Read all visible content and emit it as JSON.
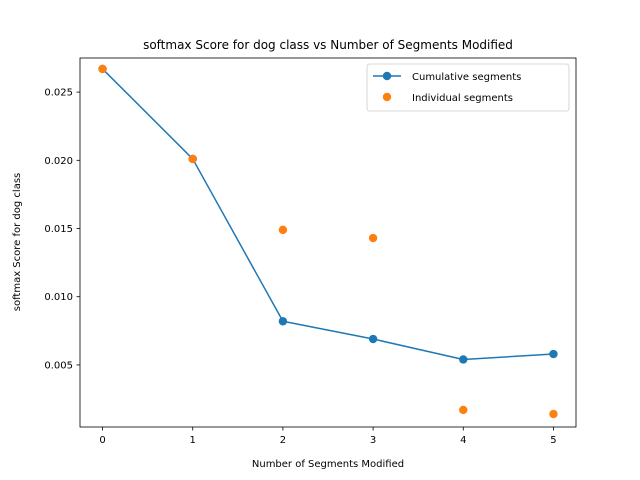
{
  "chart_data": {
    "type": "line",
    "title": "softmax Score for dog class vs Number of Segments Modified",
    "xlabel": "Number of Segments Modified",
    "ylabel": "softmax Score for dog class",
    "xlim": [
      -0.25,
      5.25
    ],
    "ylim": [
      0.00045,
      0.0275
    ],
    "x_ticks": [
      0,
      1,
      2,
      3,
      4,
      5
    ],
    "x_tick_labels": [
      "0",
      "1",
      "2",
      "3",
      "4",
      "5"
    ],
    "y_ticks": [
      0.005,
      0.01,
      0.015,
      0.02,
      0.025
    ],
    "y_tick_labels": [
      "0.005",
      "0.010",
      "0.015",
      "0.020",
      "0.025"
    ],
    "grid": false,
    "legend_position": "top-right",
    "series": [
      {
        "name": "Cumulative segments",
        "style": "line-marker",
        "color": "#1f77b4",
        "x": [
          0,
          1,
          2,
          3,
          4,
          5
        ],
        "y": [
          0.0267,
          0.0201,
          0.0082,
          0.0069,
          0.0054,
          0.0058
        ]
      },
      {
        "name": "Individual segments",
        "style": "marker",
        "color": "#ff7f0e",
        "x": [
          0,
          1,
          2,
          3,
          4,
          5
        ],
        "y": [
          0.0267,
          0.0201,
          0.0149,
          0.0143,
          0.0017,
          0.0014
        ]
      }
    ]
  }
}
